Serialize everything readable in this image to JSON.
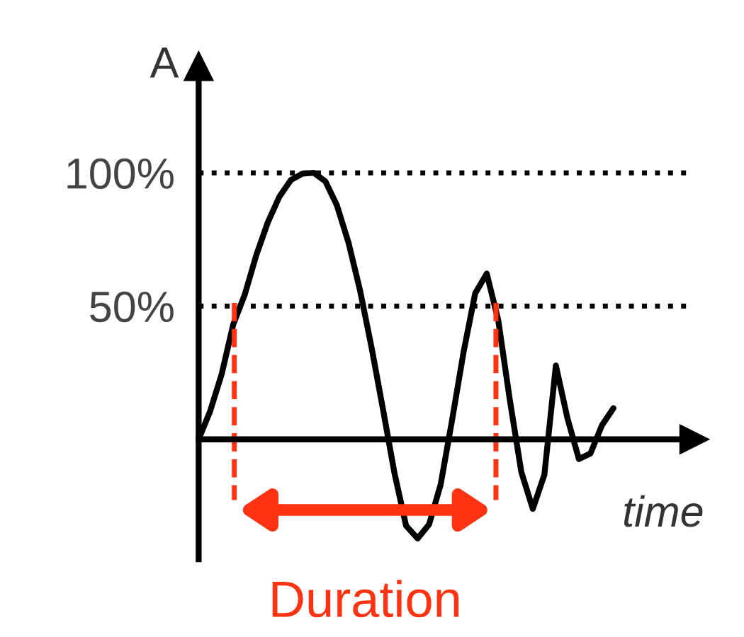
{
  "chart_data": {
    "type": "line",
    "xlabel": "time",
    "ylabel": "A",
    "categories": [
      null,
      null,
      null,
      null,
      null,
      null,
      null,
      null,
      null,
      null,
      null,
      null,
      null,
      null,
      null,
      null,
      null,
      null,
      null,
      null,
      null,
      null,
      null,
      null,
      null,
      null,
      null,
      null,
      null,
      null,
      null,
      null,
      null,
      null,
      null,
      null,
      null,
      null,
      null,
      null,
      null,
      null,
      null,
      null
    ],
    "series": [
      {
        "color": "#000000",
        "values": [
          0,
          10.6,
          24.5,
          43.1,
          54.3,
          69.1,
          81.4,
          91,
          97.3,
          99.7,
          100,
          96.8,
          87.8,
          73.9,
          56,
          34.6,
          11.2,
          -12.8,
          -32.4,
          -37.2,
          -31.9,
          -17,
          7.4,
          33,
          54.8,
          62.2,
          44.7,
          14.9,
          -12.2,
          -26.1,
          -13.3,
          27.7,
          8,
          -7.4,
          -5.3,
          5.3,
          11.7,
          null,
          null,
          null,
          null,
          null,
          null,
          null
        ]
      }
    ],
    "ylim": [
      -45,
      140
    ],
    "yticks": [
      {
        "value": 50,
        "label": "50%"
      },
      {
        "value": 100,
        "label": "100%"
      }
    ],
    "tick_labels": "y",
    "grid": false,
    "marker": "none",
    "line_style": "solid",
    "ref_lines": [
      {
        "axis": "y",
        "value": 100,
        "color": "#000000",
        "line_style": "dotted"
      },
      {
        "axis": "y",
        "value": 50,
        "color": "#000000",
        "line_style": "dotted"
      }
    ],
    "annotations": [
      "Duration"
    ]
  }
}
